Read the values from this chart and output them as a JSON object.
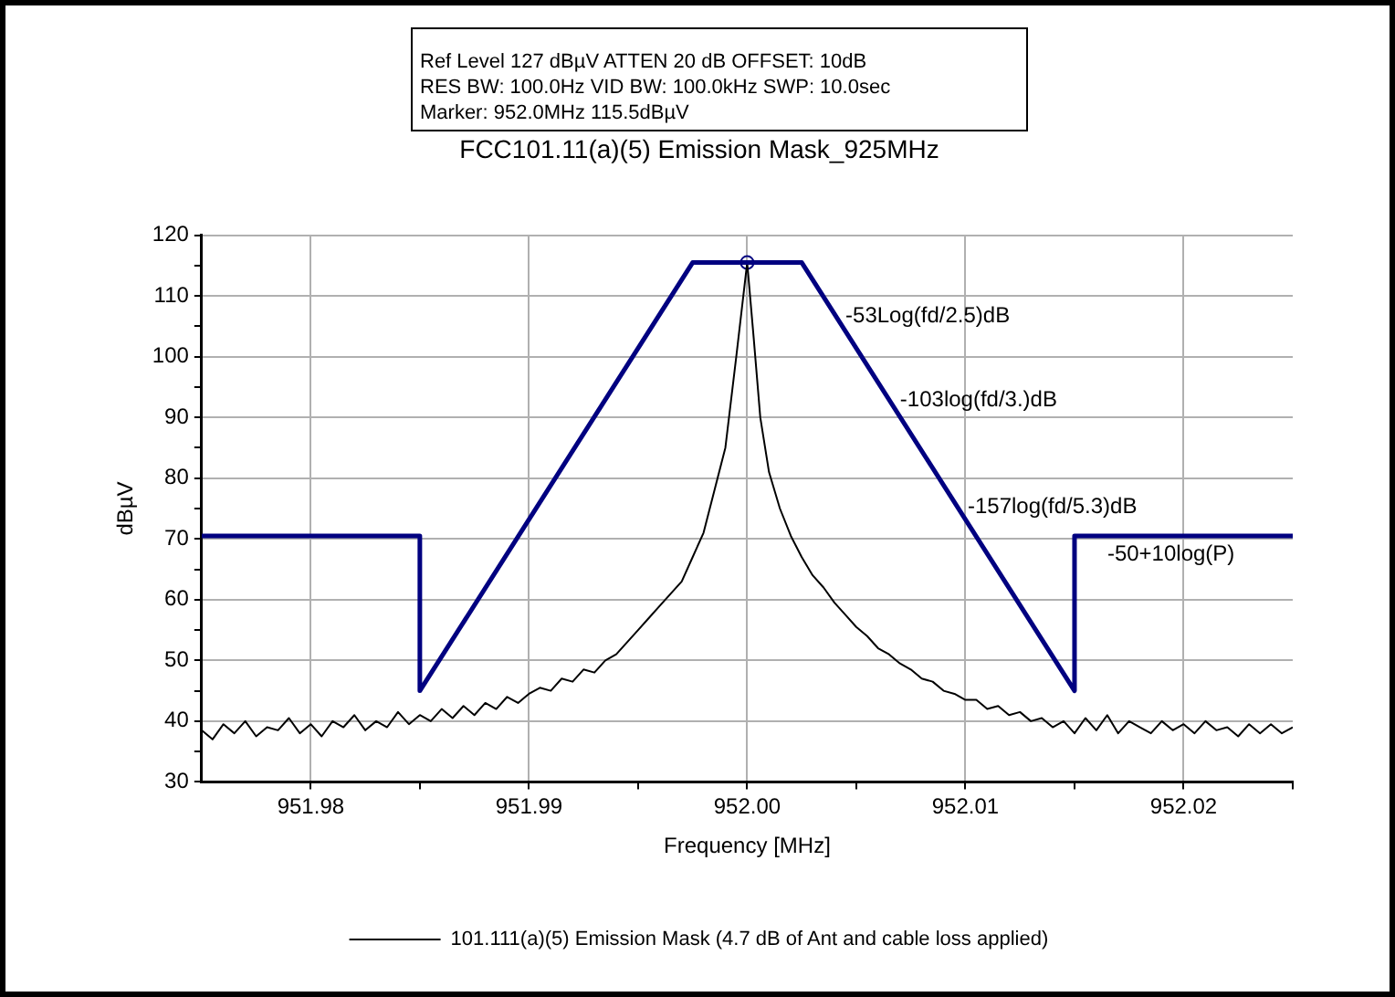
{
  "chart_data": {
    "type": "line",
    "title": "FCC101.11(a)(5) Emission Mask_925MHz",
    "xlabel": "Frequency [MHz]",
    "ylabel": "dBµV",
    "annotations": [
      "Ref Level 127 dBµV    ATTEN 20 dB    OFFSET: 10dB",
      "RES BW: 100.0Hz  VID BW: 100.0kHz  SWP: 10.0sec",
      "Marker: 952.0MHz  115.5dBµV",
      {
        "text": "-53Log(fd/2.5)dB",
        "x": 952.0035,
        "y": 109.7
      },
      {
        "text": "-103log(fd/3.)dB",
        "x": 952.006,
        "y": 95.8
      },
      {
        "text": "-157log(fd/5.3)dB",
        "x": 952.0091,
        "y": 78.3
      },
      {
        "text": "-50+10log(P)",
        "x": 952.0155,
        "y": 70.5
      }
    ],
    "xlim": [
      951.975,
      952.025
    ],
    "xticks": [
      {
        "value": 951.98,
        "label": "951.98"
      },
      {
        "value": 951.985,
        "label": null
      },
      {
        "value": 951.99,
        "label": "951.99"
      },
      {
        "value": 951.995,
        "label": null
      },
      {
        "value": 952,
        "label": "952.00"
      },
      {
        "value": 952.005,
        "label": null
      },
      {
        "value": 952.01,
        "label": "952.01"
      },
      {
        "value": 952.015,
        "label": null
      },
      {
        "value": 952.02,
        "label": "952.02"
      },
      {
        "value": 952.025,
        "label": null
      }
    ],
    "ylim": [
      30,
      120
    ],
    "yticks": [
      30,
      {
        "value": 35,
        "label": null
      },
      40,
      {
        "value": 45,
        "label": null
      },
      50,
      {
        "value": 55,
        "label": null
      },
      60,
      {
        "value": 65,
        "label": null
      },
      70,
      {
        "value": 75,
        "label": null
      },
      80,
      {
        "value": 85,
        "label": null
      },
      90,
      {
        "value": 95,
        "label": null
      },
      100,
      {
        "value": 105,
        "label": null
      },
      110,
      {
        "value": 115,
        "label": null
      },
      120
    ],
    "grid": true,
    "legend": "bottom",
    "marker": "none",
    "line_style": "solid",
    "series": [
      {
        "color": "#000080",
        "x": [
          951.975,
          951.985,
          951.985,
          951.9975,
          952.0025,
          952.015,
          952.015,
          952.025
        ],
        "values": [
          70.5,
          70.5,
          45,
          115.5,
          115.5,
          45,
          70.5,
          70.5
        ]
      },
      {
        "name": "101.111(a)(5) Emission Mask (4.7 dB of Ant and cable loss applied)",
        "color": "#000000",
        "x": [
          951.975,
          951.9755,
          951.976,
          951.9765,
          951.977,
          951.9775,
          951.978,
          951.9785,
          951.979,
          951.9795,
          951.98,
          951.9805,
          951.981,
          951.9815,
          951.982,
          951.9825,
          951.983,
          951.9835,
          951.984,
          951.9845,
          951.985,
          951.9855,
          951.986,
          951.9865,
          951.987,
          951.9875,
          951.988,
          951.9885,
          951.989,
          951.9895,
          951.99,
          951.9905,
          951.991,
          951.9915,
          951.992,
          951.9925,
          951.993,
          951.9935,
          951.994,
          951.9945,
          951.995,
          951.9955,
          951.996,
          951.9965,
          951.997,
          951.9975,
          951.998,
          951.9985,
          951.999,
          951.9995,
          952,
          952.0003,
          952.0006,
          952.001,
          952.0015,
          952.002,
          952.0025,
          952.003,
          952.0035,
          952.004,
          952.0045,
          952.005,
          952.0055,
          952.006,
          952.0065,
          952.007,
          952.0075,
          952.008,
          952.0085,
          952.009,
          952.0095,
          952.01,
          952.0105,
          952.011,
          952.0115,
          952.012,
          952.0125,
          952.013,
          952.0135,
          952.014,
          952.0145,
          952.015,
          952.0155,
          952.016,
          952.0165,
          952.017,
          952.0175,
          952.018,
          952.0185,
          952.019,
          952.0195,
          952.02,
          952.0205,
          952.021,
          952.0215,
          952.022,
          952.0225,
          952.023,
          952.0235,
          952.024,
          952.0245,
          952.025
        ],
        "values": [
          38.5,
          37,
          39.5,
          38,
          40,
          37.5,
          39,
          38.5,
          40.5,
          38,
          39.5,
          37.5,
          40,
          39,
          41,
          38.5,
          40,
          39,
          41.5,
          39.5,
          41,
          40,
          42,
          40.5,
          42.5,
          41,
          43,
          42,
          44,
          43,
          44.5,
          45.5,
          45,
          47,
          46.5,
          48.5,
          48,
          50,
          51,
          53,
          55,
          57,
          59,
          61,
          63,
          67,
          71,
          78,
          85,
          100,
          115.5,
          103,
          90,
          81,
          75,
          70.5,
          67,
          64,
          62,
          59.5,
          57.5,
          55.5,
          54,
          52,
          51,
          49.5,
          48.5,
          47,
          46.5,
          45,
          44.5,
          43.5,
          43.5,
          42,
          42.5,
          41,
          41.5,
          40,
          40.5,
          39,
          40,
          38,
          40.5,
          38.5,
          41,
          38,
          40,
          39,
          38,
          40,
          38.5,
          39.5,
          38,
          40,
          38.5,
          39,
          37.5,
          39.5,
          38,
          39.5,
          38,
          39
        ]
      },
      {
        "type": "scatter",
        "color": "#000080",
        "marker": "circle",
        "x": [
          952
        ],
        "values": [
          115.5
        ]
      }
    ]
  }
}
